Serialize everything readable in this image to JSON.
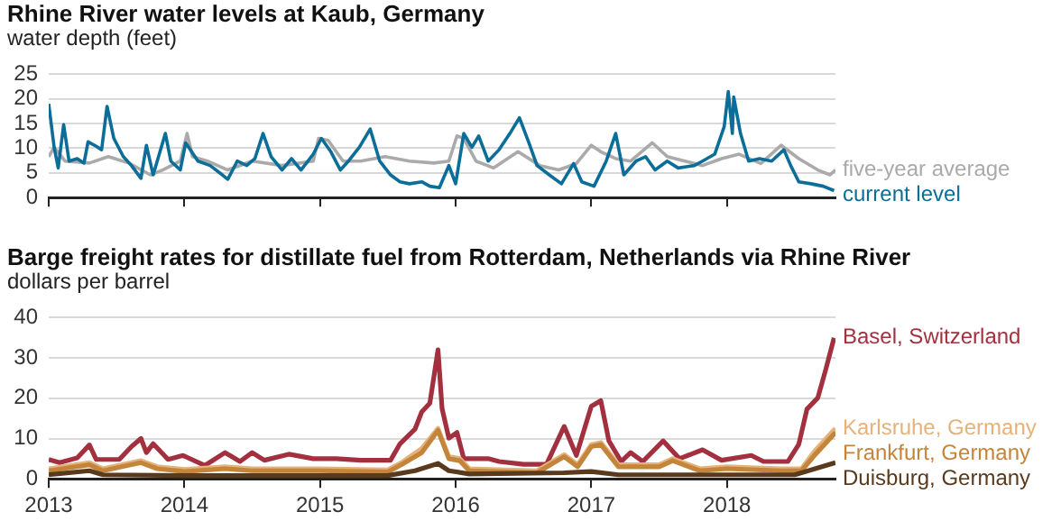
{
  "chart_data": [
    {
      "type": "line",
      "title": "Rhine River water levels at Kaub, Germany",
      "ylabel": "water depth (feet)",
      "xlim": [
        2013,
        2018.8
      ],
      "xticks": [
        2013,
        2014,
        2015,
        2016,
        2017,
        2018
      ],
      "ylim": [
        0,
        25
      ],
      "yticks": [
        0,
        5,
        10,
        15,
        20,
        25
      ],
      "grid": "y",
      "legend": "right",
      "tick_labels": "y",
      "series": [
        {
          "name": "five-year average",
          "color": "#aaaaaa",
          "x": [
            2013.0,
            2013.04,
            2013.12,
            2013.3,
            2013.44,
            2013.59,
            2013.75,
            2013.84,
            2013.97,
            2014.02,
            2014.06,
            2014.17,
            2014.32,
            2014.5,
            2014.72,
            2014.95,
            2014.99,
            2015.06,
            2015.17,
            2015.3,
            2015.48,
            2015.66,
            2015.84,
            2015.95,
            2016.01,
            2016.06,
            2016.15,
            2016.28,
            2016.46,
            2016.62,
            2016.76,
            2016.89,
            2017.0,
            2017.07,
            2017.18,
            2017.29,
            2017.45,
            2017.56,
            2017.69,
            2017.82,
            2017.96,
            2018.09,
            2018.25,
            2018.4,
            2018.53,
            2018.67,
            2018.76,
            2018.8
          ],
          "values": [
            8.3,
            10.2,
            7.4,
            7,
            8.3,
            7,
            4.6,
            5.6,
            7.4,
            13,
            8.3,
            7.4,
            5.6,
            7.4,
            6.5,
            7.4,
            12,
            11.6,
            7.4,
            7.4,
            8.3,
            7.4,
            7,
            7.4,
            12.5,
            12,
            7.4,
            6,
            9.3,
            6.5,
            5.6,
            6.9,
            10.6,
            9.3,
            7.9,
            7.4,
            11.1,
            8.3,
            7.4,
            6.5,
            7.9,
            8.8,
            6.9,
            10.6,
            7.9,
            5.6,
            4.6,
            5.6
          ]
        },
        {
          "name": "current level",
          "color": "#0b6e99",
          "x": [
            2013.0,
            2013.04,
            2013.07,
            2013.11,
            2013.15,
            2013.21,
            2013.26,
            2013.29,
            2013.35,
            2013.39,
            2013.43,
            2013.48,
            2013.55,
            2013.61,
            2013.68,
            2013.72,
            2013.77,
            2013.86,
            2013.9,
            2013.97,
            2014.01,
            2014.1,
            2014.19,
            2014.28,
            2014.32,
            2014.39,
            2014.46,
            2014.52,
            2014.58,
            2014.64,
            2014.72,
            2014.79,
            2014.86,
            2014.95,
            2015.01,
            2015.08,
            2015.15,
            2015.21,
            2015.29,
            2015.37,
            2015.44,
            2015.52,
            2015.59,
            2015.66,
            2015.75,
            2015.81,
            2015.88,
            2015.95,
            2016.0,
            2016.06,
            2016.12,
            2016.17,
            2016.24,
            2016.32,
            2016.4,
            2016.47,
            2016.54,
            2016.6,
            2016.69,
            2016.78,
            2016.87,
            2016.93,
            2017.02,
            2017.11,
            2017.18,
            2017.24,
            2017.33,
            2017.4,
            2017.47,
            2017.56,
            2017.64,
            2017.76,
            2017.82,
            2017.91,
            2017.98,
            2018.01,
            2018.04,
            2018.05,
            2018.1,
            2018.16,
            2018.24,
            2018.33,
            2018.42,
            2018.47,
            2018.53,
            2018.62,
            2018.71,
            2018.79
          ],
          "values": [
            19,
            10.2,
            6,
            14.8,
            7.4,
            7.9,
            7,
            11.3,
            10.4,
            9.7,
            18.5,
            12,
            8.3,
            6.5,
            3.9,
            10.6,
            4.6,
            13,
            7.4,
            5.6,
            11.1,
            7.4,
            6.5,
            4.6,
            3.7,
            7.4,
            6.5,
            7.9,
            13,
            8.3,
            5.6,
            7.9,
            5.6,
            8.8,
            12,
            9.3,
            5.6,
            7.4,
            10.2,
            13.9,
            7.4,
            4.6,
            3.2,
            2.8,
            3.2,
            2.3,
            2,
            6.5,
            2.8,
            13,
            10.2,
            12.5,
            7.4,
            9.7,
            13,
            16.2,
            11.1,
            6.5,
            4.6,
            2.8,
            6.9,
            3.2,
            2.3,
            7.4,
            13,
            4.6,
            7.4,
            8.3,
            5.6,
            7.4,
            6,
            6.5,
            7.4,
            8.8,
            14.4,
            21.5,
            13,
            20.4,
            13,
            7.4,
            7.9,
            7.4,
            9.7,
            6.5,
            3.2,
            2.8,
            2.3,
            1.4
          ]
        }
      ]
    },
    {
      "type": "line",
      "title": "Barge freight rates for distillate fuel from Rotterdam, Netherlands via Rhine River",
      "ylabel": "dollars per barrel",
      "xlim": [
        2013,
        2018.8
      ],
      "xticks": [
        2013,
        2014,
        2015,
        2016,
        2017,
        2018
      ],
      "ylim": [
        0,
        40
      ],
      "yticks": [
        0,
        10,
        20,
        30,
        40
      ],
      "grid": "y",
      "legend": "right",
      "series": [
        {
          "name": "Basel, Switzerland",
          "color": "#a3303f",
          "x": [
            2013.0,
            2013.08,
            2013.21,
            2013.3,
            2013.35,
            2013.52,
            2013.61,
            2013.68,
            2013.72,
            2013.77,
            2013.88,
            2013.99,
            2014.15,
            2014.3,
            2014.41,
            2014.5,
            2014.59,
            2014.77,
            2014.95,
            2015.12,
            2015.3,
            2015.52,
            2015.59,
            2015.7,
            2015.75,
            2015.81,
            2015.87,
            2015.9,
            2015.95,
            2016.01,
            2016.06,
            2016.24,
            2016.32,
            2016.5,
            2016.67,
            2016.8,
            2016.89,
            2017.0,
            2017.07,
            2017.13,
            2017.22,
            2017.29,
            2017.38,
            2017.53,
            2017.65,
            2017.82,
            2017.96,
            2018.18,
            2018.27,
            2018.45,
            2018.53,
            2018.59,
            2018.67,
            2018.73,
            2018.79
          ],
          "values": [
            4.8,
            4,
            5.2,
            8.4,
            4.8,
            4.8,
            8,
            10,
            6.5,
            8.7,
            4.8,
            5.8,
            3.3,
            6.5,
            4.3,
            6.5,
            4.6,
            6.1,
            5,
            5,
            4.6,
            4.6,
            8.7,
            12.3,
            16.6,
            18.8,
            32,
            17.4,
            10.1,
            11.5,
            5,
            5,
            4.3,
            3.6,
            3.6,
            13,
            5.8,
            18,
            19.4,
            9.4,
            4.3,
            6.5,
            4.3,
            9.4,
            5,
            7.2,
            4.6,
            5.8,
            4.3,
            4.3,
            8.6,
            17.3,
            20.1,
            27.3,
            35
          ]
        },
        {
          "name": "Karlsruhe, Germany",
          "color": "#e5b27c",
          "x": [
            2013.0,
            2013.3,
            2013.4,
            2013.68,
            2013.8,
            2014.0,
            2014.3,
            2014.5,
            2015.0,
            2015.5,
            2015.6,
            2015.75,
            2015.87,
            2015.95,
            2016.03,
            2016.1,
            2016.6,
            2016.8,
            2016.9,
            2017.0,
            2017.07,
            2017.2,
            2017.5,
            2017.6,
            2017.8,
            2018.0,
            2018.4,
            2018.55,
            2018.65,
            2018.8
          ],
          "values": [
            2.5,
            4,
            2.5,
            4.5,
            3,
            2.3,
            3,
            2.5,
            2.5,
            2.2,
            4,
            7.5,
            12.5,
            5.5,
            5,
            2.5,
            2,
            6,
            3.5,
            8.5,
            9,
            3.5,
            3.5,
            5,
            2.5,
            3,
            2.5,
            2.5,
            7,
            12.5
          ]
        },
        {
          "name": "Frankfurt, Germany",
          "color": "#c4853a",
          "x": [
            2013.0,
            2013.3,
            2013.4,
            2013.68,
            2013.8,
            2014.0,
            2014.3,
            2014.5,
            2015.0,
            2015.5,
            2015.6,
            2015.75,
            2015.87,
            2015.95,
            2016.03,
            2016.1,
            2016.6,
            2016.8,
            2016.9,
            2017.0,
            2017.07,
            2017.2,
            2017.5,
            2017.6,
            2017.8,
            2018.0,
            2018.4,
            2018.55,
            2018.65,
            2018.8
          ],
          "values": [
            2,
            3.5,
            2,
            4,
            2.5,
            1.8,
            2.5,
            2,
            2,
            1.7,
            3.5,
            6.5,
            12,
            5,
            4.5,
            2,
            1.5,
            5.5,
            3,
            8,
            8.5,
            3,
            3,
            4.5,
            2,
            2.5,
            2,
            2,
            6,
            11.5
          ]
        },
        {
          "name": "Duisburg, Germany",
          "color": "#5a3a1c",
          "x": [
            2013.0,
            2013.3,
            2013.4,
            2014.0,
            2015.0,
            2015.5,
            2015.7,
            2015.87,
            2015.95,
            2016.1,
            2016.8,
            2017.0,
            2017.2,
            2018.5,
            2018.65,
            2018.8
          ],
          "values": [
            1,
            2,
            1,
            0.8,
            0.8,
            0.8,
            2,
            3.8,
            2,
            1.2,
            1.5,
            1.8,
            1,
            1,
            2.5,
            4
          ]
        }
      ]
    }
  ]
}
